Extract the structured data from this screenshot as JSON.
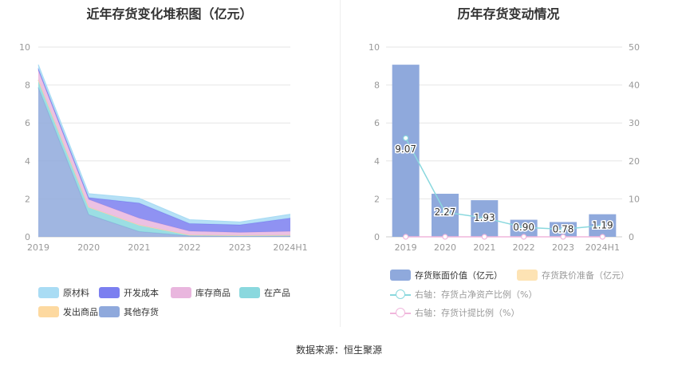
{
  "left_title": "近年存货变化堆积图（亿元）",
  "right_title": "历年存货变动情况",
  "source": "数据来源：恒生聚源",
  "chart_data": [
    {
      "type": "area",
      "title": "近年存货变化堆积图（亿元）",
      "categories": [
        "2019",
        "2020",
        "2021",
        "2022",
        "2023",
        "2024H1"
      ],
      "ylim": [
        0,
        10
      ],
      "yticks": [
        "0",
        "2",
        "4",
        "6",
        "8",
        "10"
      ],
      "grid": true,
      "legend_position": "bottom",
      "stack_order_bottom_to_top": [
        "其他存货",
        "在产品",
        "发出商品",
        "库存商品",
        "开发成本",
        "原材料"
      ],
      "series": [
        {
          "name": "原材料",
          "color": "#a9dcf4",
          "values": [
            0.2,
            0.2,
            0.25,
            0.2,
            0.15,
            0.2
          ]
        },
        {
          "name": "开发成本",
          "color": "#7b7ff0",
          "values": [
            0.1,
            0.1,
            0.8,
            0.4,
            0.4,
            0.7
          ]
        },
        {
          "name": "库存商品",
          "color": "#e9b6de",
          "values": [
            0.5,
            0.4,
            0.35,
            0.2,
            0.15,
            0.2
          ]
        },
        {
          "name": "在产品",
          "color": "#8ad8de",
          "values": [
            0.4,
            0.4,
            0.35,
            0.05,
            0.05,
            0.05
          ]
        },
        {
          "name": "发出商品",
          "color": "#fdd9a0",
          "values": [
            0.0,
            0.0,
            0.0,
            0.0,
            0.0,
            0.0
          ]
        },
        {
          "name": "其他存货",
          "color": "#8fa9dc",
          "values": [
            7.87,
            1.17,
            0.28,
            0.05,
            0.03,
            0.04
          ]
        }
      ]
    },
    {
      "type": "bar",
      "title": "历年存货变动情况",
      "categories": [
        "2019",
        "2020",
        "2021",
        "2022",
        "2023",
        "2024H1"
      ],
      "ylim": [
        0,
        10
      ],
      "yticks": [
        "0",
        "2",
        "4",
        "6",
        "8",
        "10"
      ],
      "y2lim": [
        0,
        50
      ],
      "y2ticks": [
        "0",
        "10",
        "20",
        "30",
        "40",
        "50"
      ],
      "grid": true,
      "legend_position": "bottom",
      "series": [
        {
          "name": "存货账面价值（亿元）",
          "color": "#8fa9dc",
          "axis": "left",
          "kind": "bar",
          "values": [
            9.07,
            2.27,
            1.93,
            0.9,
            0.78,
            1.19
          ],
          "labels": [
            "9.07",
            "2.27",
            "1.93",
            "0.90",
            "0.78",
            "1.19"
          ]
        },
        {
          "name": "存货跌价准备（亿元）",
          "color": "#fde3b4",
          "axis": "left",
          "kind": "bar",
          "values": [
            0,
            0,
            0,
            0,
            0,
            0
          ]
        },
        {
          "name": "右轴：存货占净资产比例（%）",
          "color": "#8ad8de",
          "axis": "right",
          "kind": "line",
          "values": [
            26,
            6.5,
            5,
            2.5,
            2,
            3
          ]
        },
        {
          "name": "右轴：存货计提比例（%）",
          "color": "#f0b6dc",
          "axis": "right",
          "kind": "line",
          "values": [
            0,
            0,
            0,
            0,
            0,
            0
          ]
        }
      ]
    }
  ]
}
